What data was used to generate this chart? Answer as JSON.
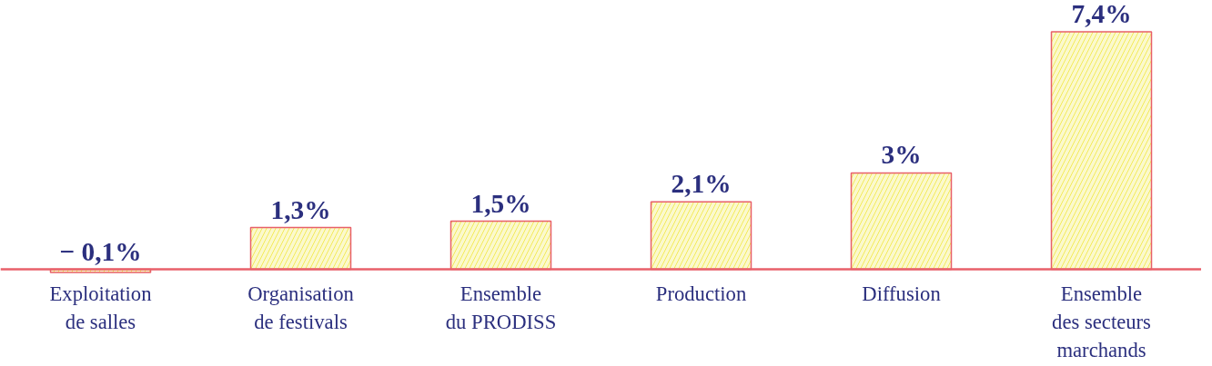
{
  "chart_data": {
    "type": "bar",
    "categories": [
      "Exploitation\nde salles",
      "Organisation\nde festivals",
      "Ensemble\ndu PRODISS",
      "Production",
      "Diffusion",
      "Ensemble\ndes secteurs\nmarchands"
    ],
    "values": [
      -0.1,
      1.3,
      1.5,
      2.1,
      3,
      7.4
    ],
    "colors": [
      "#f3ea5a",
      "#f3ea5a",
      "#f3ea5a",
      "#f3ea5a",
      "#f3ea5a",
      "#f3ea5a"
    ],
    "value_labels": [
      "− 0,1%",
      "1,3%",
      "1,5%",
      "2,1%",
      "3%",
      "7,4%"
    ],
    "grid": false
  }
}
